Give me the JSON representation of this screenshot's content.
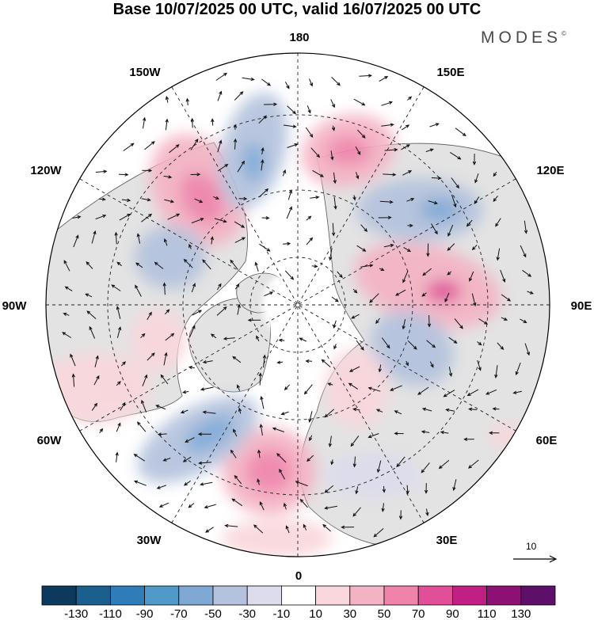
{
  "title": "Base 10/07/2025 00 UTC, valid 16/07/2025 00 UTC",
  "brand": "MODES",
  "brand_mark": "©",
  "longitude_labels": {
    "lon_180": "180",
    "lon_150e": "150E",
    "lon_120e": "120E",
    "lon_90e": "90E",
    "lon_60e": "60E",
    "lon_30e": "30E",
    "lon_0": "0",
    "lon_30w": "30W",
    "lon_60w": "60W",
    "lon_90w": "90W",
    "lon_120w": "120W",
    "lon_150w": "150W"
  },
  "vector_scale_label": "10",
  "colorbar": {
    "colors": [
      "#0b3a5e",
      "#1a5f8e",
      "#2f7db8",
      "#4f9ac9",
      "#7fa8d5",
      "#b4c2dd",
      "#dcdcec",
      "#ffffff",
      "#f9d7dc",
      "#f4b3c4",
      "#ef83aa",
      "#e04f97",
      "#c21f84",
      "#8d1074",
      "#5d0f6a"
    ],
    "labels": [
      "-130",
      "-110",
      "-90",
      "-70",
      "-50",
      "-30",
      "-10",
      "10",
      "30",
      "50",
      "70",
      "90",
      "110",
      "130"
    ]
  }
}
